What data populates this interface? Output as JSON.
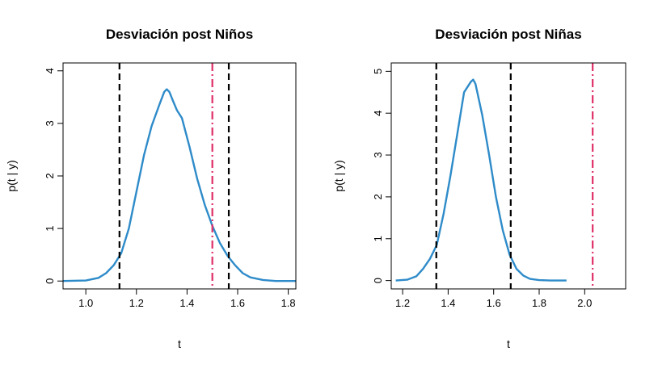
{
  "colors": {
    "curve": "#2e8bc9",
    "interval": "#000000",
    "observed": "#df2f68"
  },
  "chart_data": [
    {
      "type": "line",
      "title": "Desviación post Niños",
      "xlabel": "t",
      "ylabel": "p(t | y)",
      "xlim": [
        0.91,
        1.83
      ],
      "ylim": [
        -0.15,
        4.15
      ],
      "xticks": [
        1.0,
        1.2,
        1.4,
        1.6,
        1.8
      ],
      "xtick_labels": [
        "1.0",
        "1.2",
        "1.4",
        "1.6",
        "1.8"
      ],
      "yticks": [
        0,
        1,
        2,
        3,
        4
      ],
      "ytick_labels": [
        "0",
        "1",
        "2",
        "3",
        "4"
      ],
      "series": [
        {
          "x": [
            0.91,
            1.0,
            1.05,
            1.08,
            1.11,
            1.14,
            1.17,
            1.2,
            1.23,
            1.26,
            1.29,
            1.31,
            1.32,
            1.33,
            1.345,
            1.36,
            1.38,
            1.41,
            1.44,
            1.47,
            1.5,
            1.53,
            1.56,
            1.59,
            1.62,
            1.65,
            1.7,
            1.75,
            1.83
          ],
          "y": [
            0.0,
            0.01,
            0.06,
            0.15,
            0.3,
            0.53,
            1.0,
            1.7,
            2.4,
            2.95,
            3.35,
            3.6,
            3.65,
            3.6,
            3.42,
            3.25,
            3.1,
            2.55,
            1.95,
            1.45,
            1.05,
            0.72,
            0.48,
            0.3,
            0.15,
            0.07,
            0.02,
            0.0,
            0.0
          ]
        }
      ],
      "interval_lines": [
        1.133,
        1.565
      ],
      "observed_line": 1.5
    },
    {
      "type": "line",
      "title": "Desviación post Niñas",
      "xlabel": "t",
      "ylabel": "p(t | y)",
      "xlim": [
        1.15,
        2.18
      ],
      "ylim": [
        -0.2,
        5.2
      ],
      "xticks": [
        1.2,
        1.4,
        1.6,
        1.8,
        2.0
      ],
      "xtick_labels": [
        "1.2",
        "1.4",
        "1.6",
        "1.8",
        "2.0"
      ],
      "yticks": [
        0,
        1,
        2,
        3,
        4,
        5
      ],
      "ytick_labels": [
        "0",
        "1",
        "2",
        "3",
        "4",
        "5"
      ],
      "series": [
        {
          "x": [
            1.17,
            1.22,
            1.26,
            1.29,
            1.32,
            1.35,
            1.38,
            1.41,
            1.44,
            1.47,
            1.5,
            1.51,
            1.52,
            1.55,
            1.58,
            1.61,
            1.64,
            1.67,
            1.7,
            1.73,
            1.76,
            1.8,
            1.85,
            1.92
          ],
          "y": [
            0.0,
            0.02,
            0.1,
            0.28,
            0.52,
            0.85,
            1.6,
            2.5,
            3.5,
            4.5,
            4.75,
            4.8,
            4.7,
            3.95,
            3.0,
            2.0,
            1.2,
            0.62,
            0.28,
            0.12,
            0.04,
            0.01,
            0.0,
            0.0
          ]
        }
      ],
      "interval_lines": [
        1.348,
        1.675
      ],
      "observed_line": 2.035
    }
  ]
}
